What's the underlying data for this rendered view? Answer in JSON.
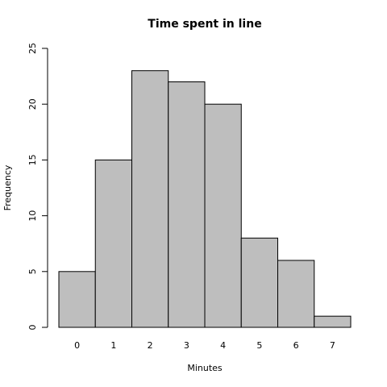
{
  "chart_data": {
    "type": "bar",
    "title": "Time spent in line",
    "x_label": "Minutes",
    "y_label": "Frequency",
    "categories": [
      "0",
      "1",
      "2",
      "3",
      "4",
      "5",
      "6",
      "7"
    ],
    "values": [
      5,
      15,
      23,
      22,
      20,
      8,
      6,
      1
    ],
    "color": "#bebebe",
    "ylim": [
      0,
      25
    ],
    "yticks": [
      0,
      5,
      10,
      15,
      20,
      25
    ]
  }
}
